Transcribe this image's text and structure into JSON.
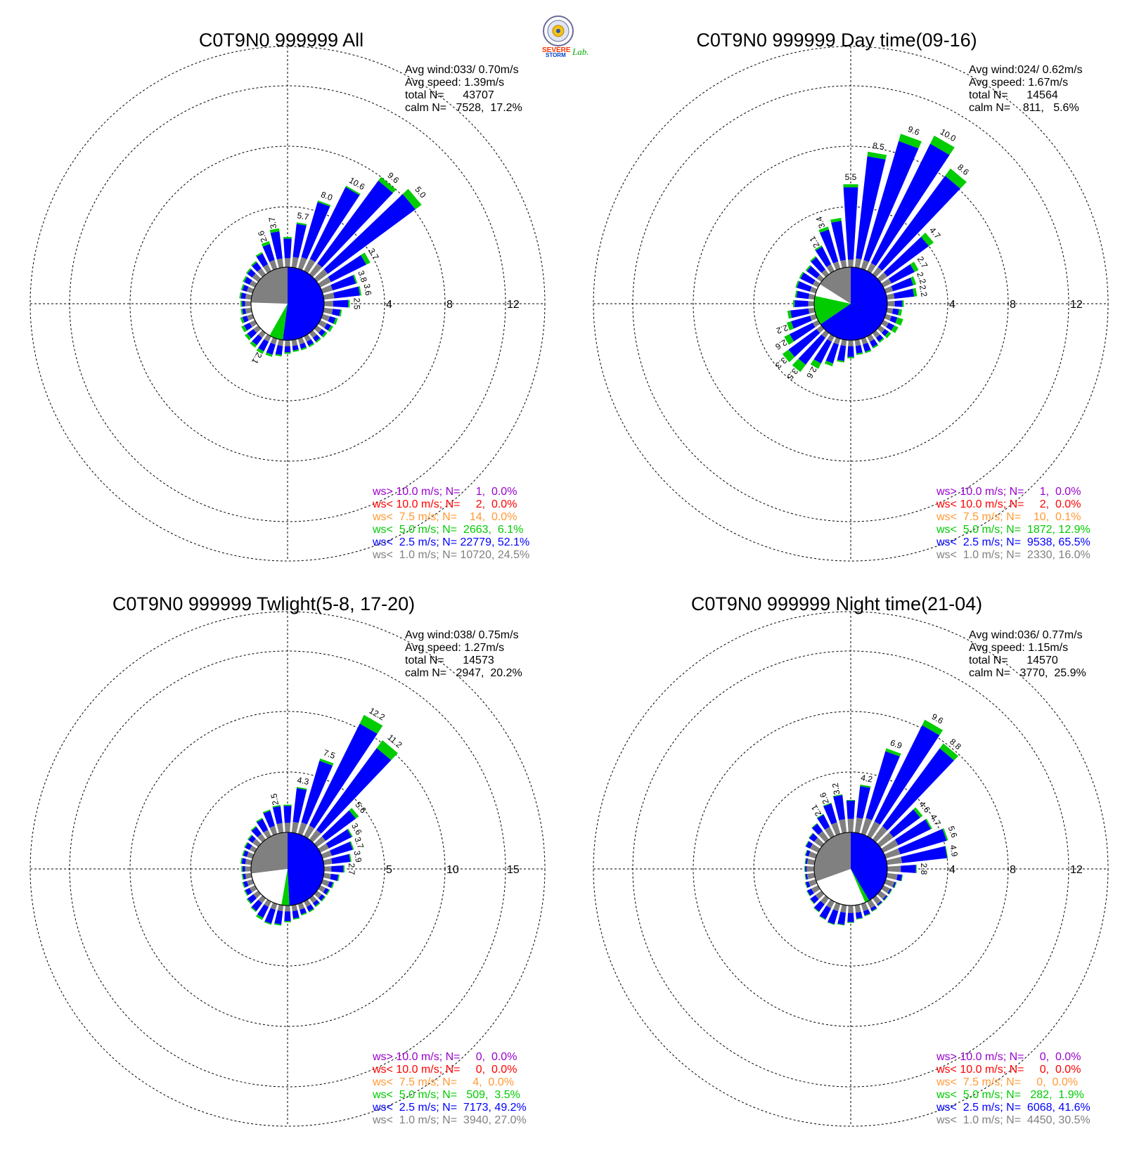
{
  "logo": {
    "text_severe": "SEVERE",
    "text_storm": "STORM",
    "text_lab": "Lab."
  },
  "colors": {
    "ws_gt10": "#9900cc",
    "ws_lt10": "#ff0000",
    "ws_lt7_5": "#ff9933",
    "ws_lt5": "#00cc00",
    "ws_lt2_5": "#0000ff",
    "ws_lt1": "#808080"
  },
  "chart_data": [
    {
      "type": "wind-rose",
      "title": "C0T9N0 999999 All",
      "rings": [
        4,
        8,
        12
      ],
      "ring_labels": [
        "4",
        "8",
        "12"
      ],
      "stats": [
        "Avg wind:033/ 0.70m/s",
        "Avg speed: 1.39m/s",
        "total N=      43707",
        "calm N=   7528,  17.2%"
      ],
      "legend": [
        {
          "text": "ws> 10.0 m/s; N=     1,  0.0%",
          "color": "#9900cc"
        },
        {
          "text": "ws< 10.0 m/s; N=     2,  0.0%",
          "color": "#ff0000"
        },
        {
          "text": "ws<  7.5 m/s; N=    14,  0.0%",
          "color": "#ff9933"
        },
        {
          "text": "ws<  5.0 m/s; N=  2663,  6.1%",
          "color": "#00cc00"
        },
        {
          "text": "ws<  2.5 m/s; N= 22779, 52.1%",
          "color": "#0000ff"
        },
        {
          "text": "ws<  1.0 m/s; N= 10720, 24.5%",
          "color": "#808080"
        }
      ],
      "calm_pie": [
        24.5,
        52.1,
        6.1
      ],
      "directions_deg": [
        0,
        10,
        20,
        30,
        40,
        50,
        60,
        70,
        80,
        90,
        100,
        110,
        120,
        130,
        140,
        150,
        160,
        170,
        180,
        190,
        200,
        210,
        220,
        230,
        240,
        250,
        260,
        270,
        280,
        290,
        300,
        310,
        320,
        330,
        340,
        350
      ],
      "bars": [
        [
          0.6,
          1.3,
          0.1
        ],
        [
          0.7,
          2.2,
          0.1
        ],
        [
          0.8,
          3.8,
          0.1
        ],
        [
          0.9,
          5.3,
          0.1
        ],
        [
          0.9,
          6.8,
          0.3
        ],
        [
          0.9,
          7.2,
          0.5
        ],
        [
          0.8,
          2.6,
          0.3
        ],
        [
          0.7,
          1.6,
          0.1
        ],
        [
          0.7,
          1.7,
          0.1
        ],
        [
          0.6,
          1.0,
          0.1
        ],
        [
          0.6,
          0.5,
          0.1
        ],
        [
          0.5,
          0.4,
          0.15
        ],
        [
          0.5,
          0.3,
          0.15
        ],
        [
          0.4,
          0.3,
          0.15
        ],
        [
          0.4,
          0.3,
          0.1
        ],
        [
          0.4,
          0.3,
          0.1
        ],
        [
          0.4,
          0.3,
          0.1
        ],
        [
          0.4,
          0.3,
          0.1
        ],
        [
          0.4,
          0.4,
          0.1
        ],
        [
          0.4,
          0.6,
          0.1
        ],
        [
          0.4,
          0.7,
          0.15
        ],
        [
          0.4,
          0.7,
          0.2
        ],
        [
          0.4,
          0.6,
          0.2
        ],
        [
          0.4,
          0.5,
          0.2
        ],
        [
          0.4,
          0.4,
          0.2
        ],
        [
          0.4,
          0.3,
          0.15
        ],
        [
          0.4,
          0.2,
          0.1
        ],
        [
          0.4,
          0.2,
          0.1
        ],
        [
          0.4,
          0.3,
          0.1
        ],
        [
          0.4,
          0.3,
          0.1
        ],
        [
          0.4,
          0.4,
          0.1
        ],
        [
          0.5,
          0.4,
          0.1
        ],
        [
          0.5,
          0.5,
          0.1
        ],
        [
          0.5,
          0.8,
          0.1
        ],
        [
          0.6,
          1.1,
          0.2
        ],
        [
          0.6,
          1.8,
          0.2
        ]
      ],
      "bar_labels": [
        {
          "dir": 340,
          "text": "2.6"
        },
        {
          "dir": 350,
          "text": "3.7"
        },
        {
          "dir": 10,
          "text": "5.7"
        },
        {
          "dir": 20,
          "text": "8.0"
        },
        {
          "dir": 30,
          "text": "10.6"
        },
        {
          "dir": 40,
          "text": "9.6"
        },
        {
          "dir": 50,
          "text": "5.0"
        },
        {
          "dir": 60,
          "text": "3.7"
        },
        {
          "dir": 70,
          "text": "3.8"
        },
        {
          "dir": 80,
          "text": "3.6"
        },
        {
          "dir": 90,
          "text": "2.5"
        },
        {
          "dir": 210,
          "text": "2.1"
        }
      ]
    },
    {
      "type": "wind-rose",
      "title": "C0T9N0 999999 Day time(09-16)",
      "rings": [
        4,
        8,
        12
      ],
      "ring_labels": [
        "4",
        "8",
        "12"
      ],
      "stats": [
        "Avg wind:024/ 0.62m/s",
        "Avg speed: 1.67m/s",
        "total N=      14564",
        "calm N=    811,   5.6%"
      ],
      "legend": [
        {
          "text": "ws> 10.0 m/s; N=     1,  0.0%",
          "color": "#9900cc"
        },
        {
          "text": "ws< 10.0 m/s; N=     2,  0.0%",
          "color": "#ff0000"
        },
        {
          "text": "ws<  7.5 m/s; N=    10,  0.1%",
          "color": "#ff9933"
        },
        {
          "text": "ws<  5.0 m/s; N=  1872, 12.9%",
          "color": "#00cc00"
        },
        {
          "text": "ws<  2.5 m/s; N=  9538, 65.5%",
          "color": "#0000ff"
        },
        {
          "text": "ws<  1.0 m/s; N=  2330, 16.0%",
          "color": "#808080"
        }
      ],
      "calm_pie": [
        16.0,
        65.5,
        12.9
      ],
      "directions_deg": [
        0,
        10,
        20,
        30,
        40,
        50,
        60,
        70,
        80,
        90,
        100,
        110,
        120,
        130,
        140,
        150,
        160,
        170,
        180,
        190,
        200,
        210,
        220,
        230,
        240,
        250,
        260,
        270,
        280,
        290,
        300,
        310,
        320,
        330,
        340,
        350
      ],
      "bars": [
        [
          0.5,
          4.8,
          0.2
        ],
        [
          0.6,
          6.8,
          0.3
        ],
        [
          0.6,
          8.2,
          0.5
        ],
        [
          0.6,
          8.8,
          0.6
        ],
        [
          0.6,
          7.5,
          0.6
        ],
        [
          0.6,
          3.4,
          0.4
        ],
        [
          0.6,
          1.7,
          0.3
        ],
        [
          0.5,
          1.4,
          0.2
        ],
        [
          0.5,
          1.3,
          0.2
        ],
        [
          0.5,
          0.5,
          0.1
        ],
        [
          0.4,
          0.4,
          0.2
        ],
        [
          0.4,
          0.4,
          0.4
        ],
        [
          0.4,
          0.4,
          0.3
        ],
        [
          0.4,
          0.3,
          0.2
        ],
        [
          0.4,
          0.3,
          0.1
        ],
        [
          0.4,
          0.4,
          0.1
        ],
        [
          0.4,
          0.5,
          0.1
        ],
        [
          0.4,
          0.5,
          0.1
        ],
        [
          0.4,
          0.7,
          0.1
        ],
        [
          0.4,
          1.0,
          0.1
        ],
        [
          0.4,
          1.3,
          0.2
        ],
        [
          0.4,
          1.6,
          0.4
        ],
        [
          0.4,
          2.2,
          0.6
        ],
        [
          0.4,
          2.3,
          0.5
        ],
        [
          0.4,
          1.7,
          0.4
        ],
        [
          0.4,
          1.3,
          0.3
        ],
        [
          0.4,
          1.2,
          0.2
        ],
        [
          0.4,
          0.9,
          0.1
        ],
        [
          0.4,
          0.8,
          0.1
        ],
        [
          0.4,
          0.9,
          0.1
        ],
        [
          0.4,
          0.9,
          0.1
        ],
        [
          0.4,
          0.8,
          0.1
        ],
        [
          0.4,
          1.0,
          0.1
        ],
        [
          0.5,
          1.3,
          0.1
        ],
        [
          0.5,
          2.2,
          0.2
        ],
        [
          0.5,
          2.6,
          0.2
        ]
      ],
      "bar_labels": [
        {
          "dir": 330,
          "text": "2.1"
        },
        {
          "dir": 340,
          "text": "3.4"
        },
        {
          "dir": 0,
          "text": "5.5"
        },
        {
          "dir": 10,
          "text": "8.5"
        },
        {
          "dir": 20,
          "text": "9.6"
        },
        {
          "dir": 30,
          "text": "10.0"
        },
        {
          "dir": 40,
          "text": "8.6"
        },
        {
          "dir": 50,
          "text": "4.7"
        },
        {
          "dir": 60,
          "text": "2.7"
        },
        {
          "dir": 70,
          "text": "2.2"
        },
        {
          "dir": 80,
          "text": "2.2"
        },
        {
          "dir": 210,
          "text": "2.6"
        },
        {
          "dir": 220,
          "text": "3.5"
        },
        {
          "dir": 230,
          "text": "3.3"
        },
        {
          "dir": 240,
          "text": "2.6"
        },
        {
          "dir": 250,
          "text": "2.2"
        }
      ]
    },
    {
      "type": "wind-rose",
      "title": "C0T9N0 999999 Twlight(5-8, 17-20)",
      "rings": [
        5,
        10,
        15
      ],
      "ring_labels": [
        "5",
        "10",
        "15"
      ],
      "stats": [
        "Avg wind:038/ 0.75m/s",
        "Avg speed: 1.27m/s",
        "total N=      14573",
        "calm N=   2947,  20.2%"
      ],
      "legend": [
        {
          "text": "ws> 10.0 m/s; N=     0,  0.0%",
          "color": "#9900cc"
        },
        {
          "text": "ws< 10.0 m/s; N=     0,  0.0%",
          "color": "#ff0000"
        },
        {
          "text": "ws<  7.5 m/s; N=     4,  0.0%",
          "color": "#ff9933"
        },
        {
          "text": "ws<  5.0 m/s; N=   509,  3.5%",
          "color": "#00cc00"
        },
        {
          "text": "ws<  2.5 m/s; N=  7173, 49.2%",
          "color": "#0000ff"
        },
        {
          "text": "ws<  1.0 m/s; N=  3940, 27.0%",
          "color": "#808080"
        }
      ],
      "calm_pie": [
        27.0,
        49.2,
        3.5
      ],
      "directions_deg": [
        0,
        10,
        20,
        30,
        40,
        50,
        60,
        70,
        80,
        90,
        100,
        110,
        120,
        130,
        140,
        150,
        160,
        170,
        180,
        190,
        200,
        210,
        220,
        230,
        240,
        250,
        260,
        270,
        280,
        290,
        300,
        310,
        320,
        330,
        340,
        350
      ],
      "bars": [
        [
          0.8,
          1.4,
          0.1
        ],
        [
          0.9,
          2.8,
          0.1
        ],
        [
          1.0,
          5.3,
          0.2
        ],
        [
          1.0,
          9.4,
          0.8
        ],
        [
          1.0,
          8.4,
          0.8
        ],
        [
          0.9,
          3.1,
          0.3
        ],
        [
          0.8,
          2.1,
          0.1
        ],
        [
          0.8,
          1.8,
          0.1
        ],
        [
          0.7,
          1.5,
          0.1
        ],
        [
          0.6,
          1.0,
          0.1
        ],
        [
          0.6,
          0.6,
          0.1
        ],
        [
          0.6,
          0.3,
          0.1
        ],
        [
          0.5,
          0.3,
          0.1
        ],
        [
          0.5,
          0.3,
          0.1
        ],
        [
          0.5,
          0.3,
          0.1
        ],
        [
          0.5,
          0.4,
          0.1
        ],
        [
          0.5,
          0.4,
          0.1
        ],
        [
          0.5,
          0.6,
          0.1
        ],
        [
          0.5,
          0.8,
          0.1
        ],
        [
          0.5,
          1.1,
          0.1
        ],
        [
          0.5,
          1.2,
          0.1
        ],
        [
          0.5,
          1.0,
          0.2
        ],
        [
          0.5,
          0.8,
          0.1
        ],
        [
          0.5,
          0.6,
          0.1
        ],
        [
          0.5,
          0.4,
          0.1
        ],
        [
          0.5,
          0.3,
          0.1
        ],
        [
          0.5,
          0.2,
          0.1
        ],
        [
          0.5,
          0.2,
          0.1
        ],
        [
          0.5,
          0.3,
          0.1
        ],
        [
          0.5,
          0.3,
          0.1
        ],
        [
          0.5,
          0.4,
          0.1
        ],
        [
          0.6,
          0.4,
          0.1
        ],
        [
          0.6,
          0.7,
          0.1
        ],
        [
          0.6,
          1.0,
          0.1
        ],
        [
          0.7,
          1.3,
          0.1
        ],
        [
          0.8,
          1.4,
          0.1
        ]
      ],
      "bar_labels": [
        {
          "dir": 350,
          "text": "2.5"
        },
        {
          "dir": 10,
          "text": "4.3"
        },
        {
          "dir": 20,
          "text": "7.5"
        },
        {
          "dir": 30,
          "text": "12.2"
        },
        {
          "dir": 40,
          "text": "11.2"
        },
        {
          "dir": 50,
          "text": "5.6"
        },
        {
          "dir": 60,
          "text": "3.6"
        },
        {
          "dir": 70,
          "text": "3.7"
        },
        {
          "dir": 80,
          "text": "3.9"
        },
        {
          "dir": 90,
          "text": "2.7"
        }
      ]
    },
    {
      "type": "wind-rose",
      "title": "C0T9N0 999999 Night time(21-04)",
      "rings": [
        4,
        8,
        12
      ],
      "ring_labels": [
        "4",
        "8",
        "12"
      ],
      "stats": [
        "Avg wind:036/ 0.77m/s",
        "Avg speed: 1.15m/s",
        "total N=      14570",
        "calm N=   3770,  25.9%"
      ],
      "legend": [
        {
          "text": "ws> 10.0 m/s; N=     0,  0.0%",
          "color": "#9900cc"
        },
        {
          "text": "ws< 10.0 m/s; N=     0,  0.0%",
          "color": "#ff0000"
        },
        {
          "text": "ws<  7.5 m/s; N=     0,  0.0%",
          "color": "#ff9933"
        },
        {
          "text": "ws<  5.0 m/s; N=   282,  1.9%",
          "color": "#00cc00"
        },
        {
          "text": "ws<  2.5 m/s; N=  6068, 41.6%",
          "color": "#0000ff"
        },
        {
          "text": "ws<  1.0 m/s; N=  4450, 30.5%",
          "color": "#808080"
        }
      ],
      "calm_pie": [
        30.5,
        41.6,
        1.9
      ],
      "directions_deg": [
        0,
        10,
        20,
        30,
        40,
        50,
        60,
        70,
        80,
        90,
        100,
        110,
        120,
        130,
        140,
        150,
        160,
        170,
        180,
        190,
        200,
        210,
        220,
        230,
        240,
        250,
        260,
        270,
        280,
        290,
        300,
        310,
        320,
        330,
        340,
        350
      ],
      "bars": [
        [
          0.9,
          1.2,
          0.05
        ],
        [
          1.0,
          2.1,
          0.1
        ],
        [
          1.1,
          4.6,
          0.2
        ],
        [
          1.1,
          7.1,
          0.4
        ],
        [
          1.1,
          6.4,
          0.4
        ],
        [
          1.1,
          2.2,
          0.2
        ],
        [
          1.1,
          2.4,
          0.1
        ],
        [
          1.0,
          3.2,
          0.1
        ],
        [
          1.0,
          3.0,
          0.05
        ],
        [
          0.9,
          1.0,
          0.05
        ],
        [
          0.7,
          0.3,
          0.05
        ],
        [
          0.6,
          0.1,
          0.05
        ],
        [
          0.5,
          0.1,
          0.05
        ],
        [
          0.5,
          0.1,
          0.05
        ],
        [
          0.5,
          0.1,
          0.05
        ],
        [
          0.5,
          0.2,
          0.05
        ],
        [
          0.5,
          0.3,
          0.05
        ],
        [
          0.5,
          0.4,
          0.05
        ],
        [
          0.5,
          0.6,
          0.05
        ],
        [
          0.5,
          0.8,
          0.05
        ],
        [
          0.5,
          0.9,
          0.05
        ],
        [
          0.5,
          0.8,
          0.05
        ],
        [
          0.5,
          0.6,
          0.05
        ],
        [
          0.5,
          0.4,
          0.05
        ],
        [
          0.5,
          0.3,
          0.05
        ],
        [
          0.5,
          0.2,
          0.05
        ],
        [
          0.5,
          0.1,
          0.05
        ],
        [
          0.5,
          0.1,
          0.05
        ],
        [
          0.5,
          0.1,
          0.05
        ],
        [
          0.5,
          0.2,
          0.05
        ],
        [
          0.6,
          0.3,
          0.05
        ],
        [
          0.6,
          0.4,
          0.05
        ],
        [
          0.7,
          0.6,
          0.05
        ],
        [
          0.7,
          0.9,
          0.05
        ],
        [
          0.8,
          1.3,
          0.05
        ],
        [
          0.9,
          1.6,
          0.05
        ]
      ],
      "bar_labels": [
        {
          "dir": 330,
          "text": "2.1"
        },
        {
          "dir": 340,
          "text": "2.6"
        },
        {
          "dir": 350,
          "text": "3.2"
        },
        {
          "dir": 10,
          "text": "4.2"
        },
        {
          "dir": 20,
          "text": "6.9"
        },
        {
          "dir": 30,
          "text": "9.6"
        },
        {
          "dir": 40,
          "text": "8.8"
        },
        {
          "dir": 50,
          "text": "4.6"
        },
        {
          "dir": 60,
          "text": "4.7"
        },
        {
          "dir": 70,
          "text": "5.6"
        },
        {
          "dir": 80,
          "text": "4.9"
        },
        {
          "dir": 90,
          "text": "2.8"
        }
      ]
    }
  ]
}
